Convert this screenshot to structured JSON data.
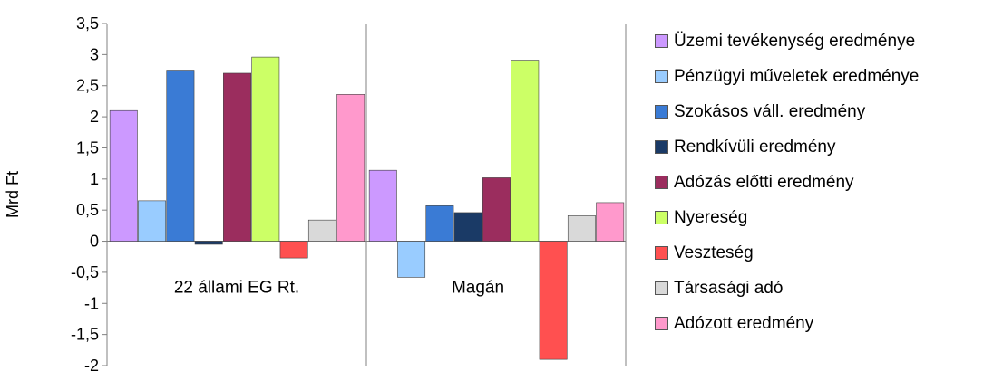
{
  "chart_data": {
    "type": "bar",
    "ylabel": "Mrd Ft",
    "ylim": [
      -2,
      3.5
    ],
    "yticks": [
      "3,5",
      "3",
      "2,5",
      "2",
      "1,5",
      "1",
      "0,5",
      "0",
      "-0,5",
      "-1",
      "-1,5",
      "-2"
    ],
    "categories": [
      "22 állami EG Rt.",
      "Magán"
    ],
    "legend_position": "right",
    "series": [
      {
        "name": "Üzemi tevékenység eredménye",
        "color": "#cc99ff",
        "values": [
          2.1,
          1.14
        ]
      },
      {
        "name": "Pénzügyi műveletek eredménye",
        "color": "#99ccff",
        "values": [
          0.65,
          -0.58
        ]
      },
      {
        "name": "Szokásos váll. eredmény",
        "color": "#3a7bd5",
        "values": [
          2.75,
          0.57
        ]
      },
      {
        "name": "Rendkívüli eredmény",
        "color": "#1a3a66",
        "values": [
          -0.05,
          0.46
        ]
      },
      {
        "name": "Adózás előtti eredmény",
        "color": "#9b2d5e",
        "values": [
          2.7,
          1.02
        ]
      },
      {
        "name": "Nyereség",
        "color": "#ccff66",
        "values": [
          2.96,
          2.91
        ]
      },
      {
        "name": "Veszteség",
        "color": "#ff5050",
        "values": [
          -0.27,
          -1.9
        ]
      },
      {
        "name": "Társasági adó",
        "color": "#d9d9d9",
        "values": [
          0.34,
          0.41
        ]
      },
      {
        "name": "Adózott eredmény",
        "color": "#ff99cc",
        "values": [
          2.36,
          0.62
        ]
      }
    ]
  }
}
